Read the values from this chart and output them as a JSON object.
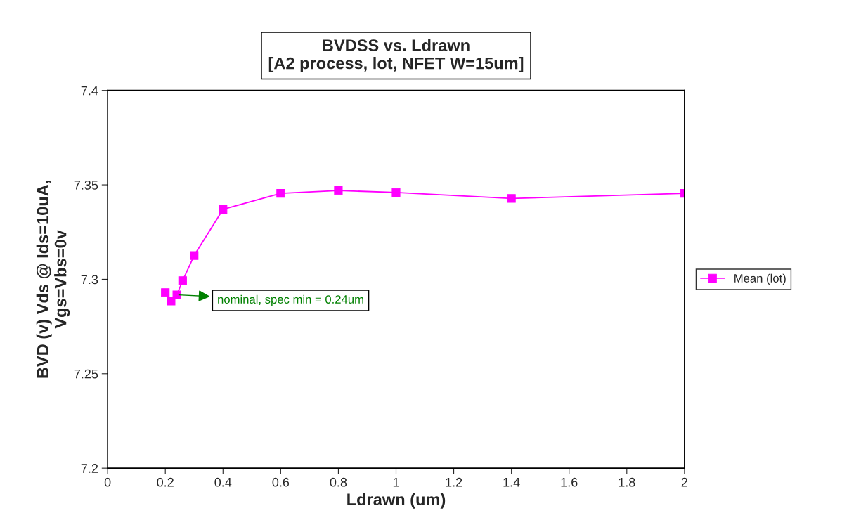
{
  "chart_data": {
    "type": "line",
    "title": "BVDSS vs. Ldrawn\n[A2 process, lot, NFET W=15um]",
    "xlabel": "Ldrawn (um)",
    "ylabel": "BVD (v) Vds @ Ids=10uA,\nVgs=Vbs=0v",
    "x": [
      0.2,
      0.22,
      0.24,
      0.26,
      0.3,
      0.4,
      0.6,
      0.8,
      1.0,
      1.4,
      2.0
    ],
    "series": [
      {
        "name": "Mean (lot)",
        "color": "#ff00ff",
        "values": [
          7.293,
          7.2885,
          7.2918,
          7.2993,
          7.3126,
          7.337,
          7.3455,
          7.347,
          7.346,
          7.3428,
          7.3455
        ]
      }
    ],
    "xlim": [
      0,
      2
    ],
    "xticks": [
      0,
      0.2,
      0.4,
      0.6,
      0.8,
      1,
      1.2,
      1.4,
      1.6,
      1.8,
      2
    ],
    "ylim": [
      7.2,
      7.4
    ],
    "yticks": [
      7.2,
      7.25,
      7.3,
      7.35,
      7.4
    ],
    "annotations": [
      {
        "text": "nominal, spec min = 0.24um",
        "x": 0.24,
        "y": 7.2918
      }
    ],
    "marker": "square",
    "line_style": "solid",
    "grid": false,
    "legend": "right"
  }
}
